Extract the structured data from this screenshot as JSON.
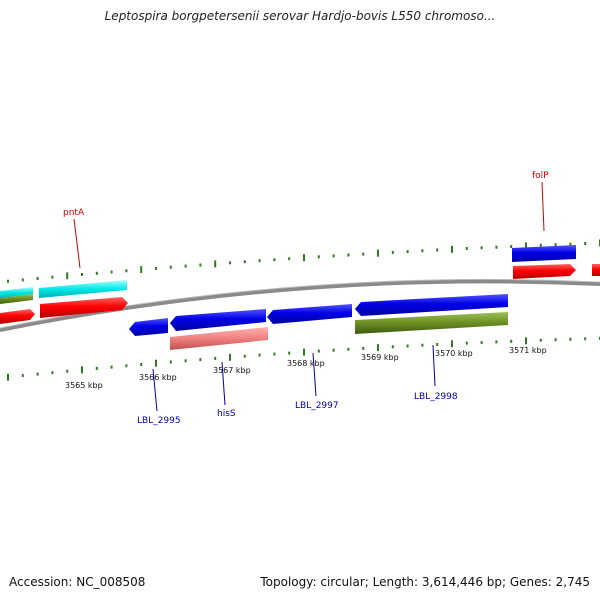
{
  "title": "Leptospira borgpetersenii serovar Hardjo-bovis L550 chromoso...",
  "accession_label": "Accession: NC_008508",
  "summary": "Topology: circular; Length: 3,614,446 bp; Genes: 2,745",
  "tick_labels": [
    "3565 kbp",
    "3566 kbp",
    "3567 kbp",
    "3568 kbp",
    "3569 kbp",
    "3570 kbp",
    "3571 kbp"
  ],
  "gene_labels_forward": [
    "pntA",
    "folP"
  ],
  "gene_labels_reverse": [
    "LBL_2995",
    "hisS",
    "LBL_2997",
    "LBL_2998"
  ],
  "colors": {
    "backbone": "#8a8a8a",
    "tick": "#2e7d1e",
    "cds_forward": "#ff0000",
    "cds_reverse": "#0000e0",
    "cyan_feature": "#00e5e5",
    "olive_feature": "#6b8e23",
    "pink_feature": "#f08080",
    "label_forward": "#cc0000",
    "label_reverse": "#0000aa"
  }
}
